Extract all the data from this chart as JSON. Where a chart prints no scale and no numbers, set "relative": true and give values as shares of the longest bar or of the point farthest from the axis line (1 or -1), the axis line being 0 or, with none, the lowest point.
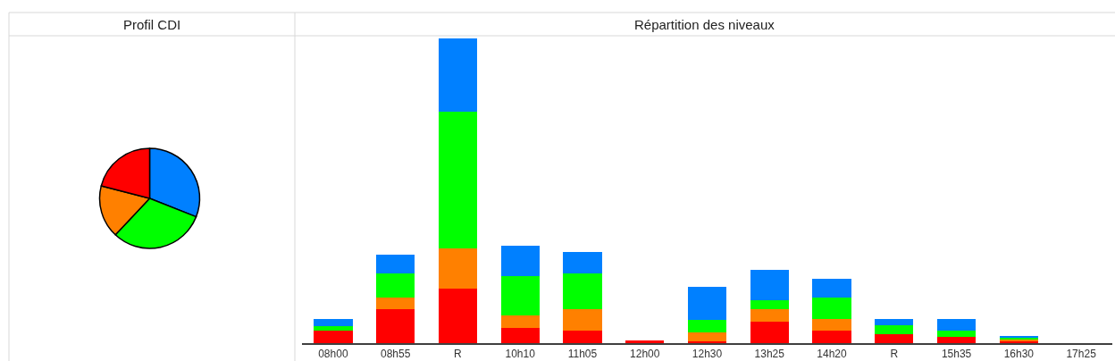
{
  "chart_data": [
    {
      "type": "pie",
      "title": "Profil CDI",
      "categories": [
        null,
        null,
        null,
        null
      ],
      "values": [
        31,
        31,
        17,
        21
      ],
      "colors": [
        "#0080ff",
        "#00ff00",
        "#ff8000",
        "#ff0000"
      ],
      "legend": false
    },
    {
      "type": "bar",
      "title": "Répartition des niveaux",
      "stacked": true,
      "relative": true,
      "legend": false,
      "categories": [
        "08h00",
        "08h55",
        "R",
        "10h10",
        "11h05",
        "12h00",
        "12h30",
        "13h25",
        "14h20",
        "R",
        "15h35",
        "16h30",
        "17h25"
      ],
      "series": [
        {
          "color": "#ff0000",
          "values": [
            0.04,
            0.11,
            0.18,
            0.05,
            0.04,
            0.01,
            0.005,
            0.07,
            0.04,
            0.03,
            0.02,
            0.006,
            0
          ]
        },
        {
          "color": "#ff8000",
          "values": [
            0,
            0.04,
            0.13,
            0.04,
            0.07,
            0,
            0.03,
            0.04,
            0.04,
            null,
            0,
            0.006,
            0
          ]
        },
        {
          "color": "#00ff00",
          "values": [
            0.015,
            0.08,
            0.45,
            0.13,
            0.12,
            0,
            0.04,
            0.03,
            0.07,
            0.03,
            0.02,
            0.006,
            0
          ]
        },
        {
          "color": "#0080ff",
          "values": [
            0.025,
            0.06,
            0.24,
            0.1,
            0.07,
            0,
            0.11,
            0.1,
            0.06,
            0.02,
            0.04,
            0.006,
            0
          ]
        }
      ]
    }
  ]
}
